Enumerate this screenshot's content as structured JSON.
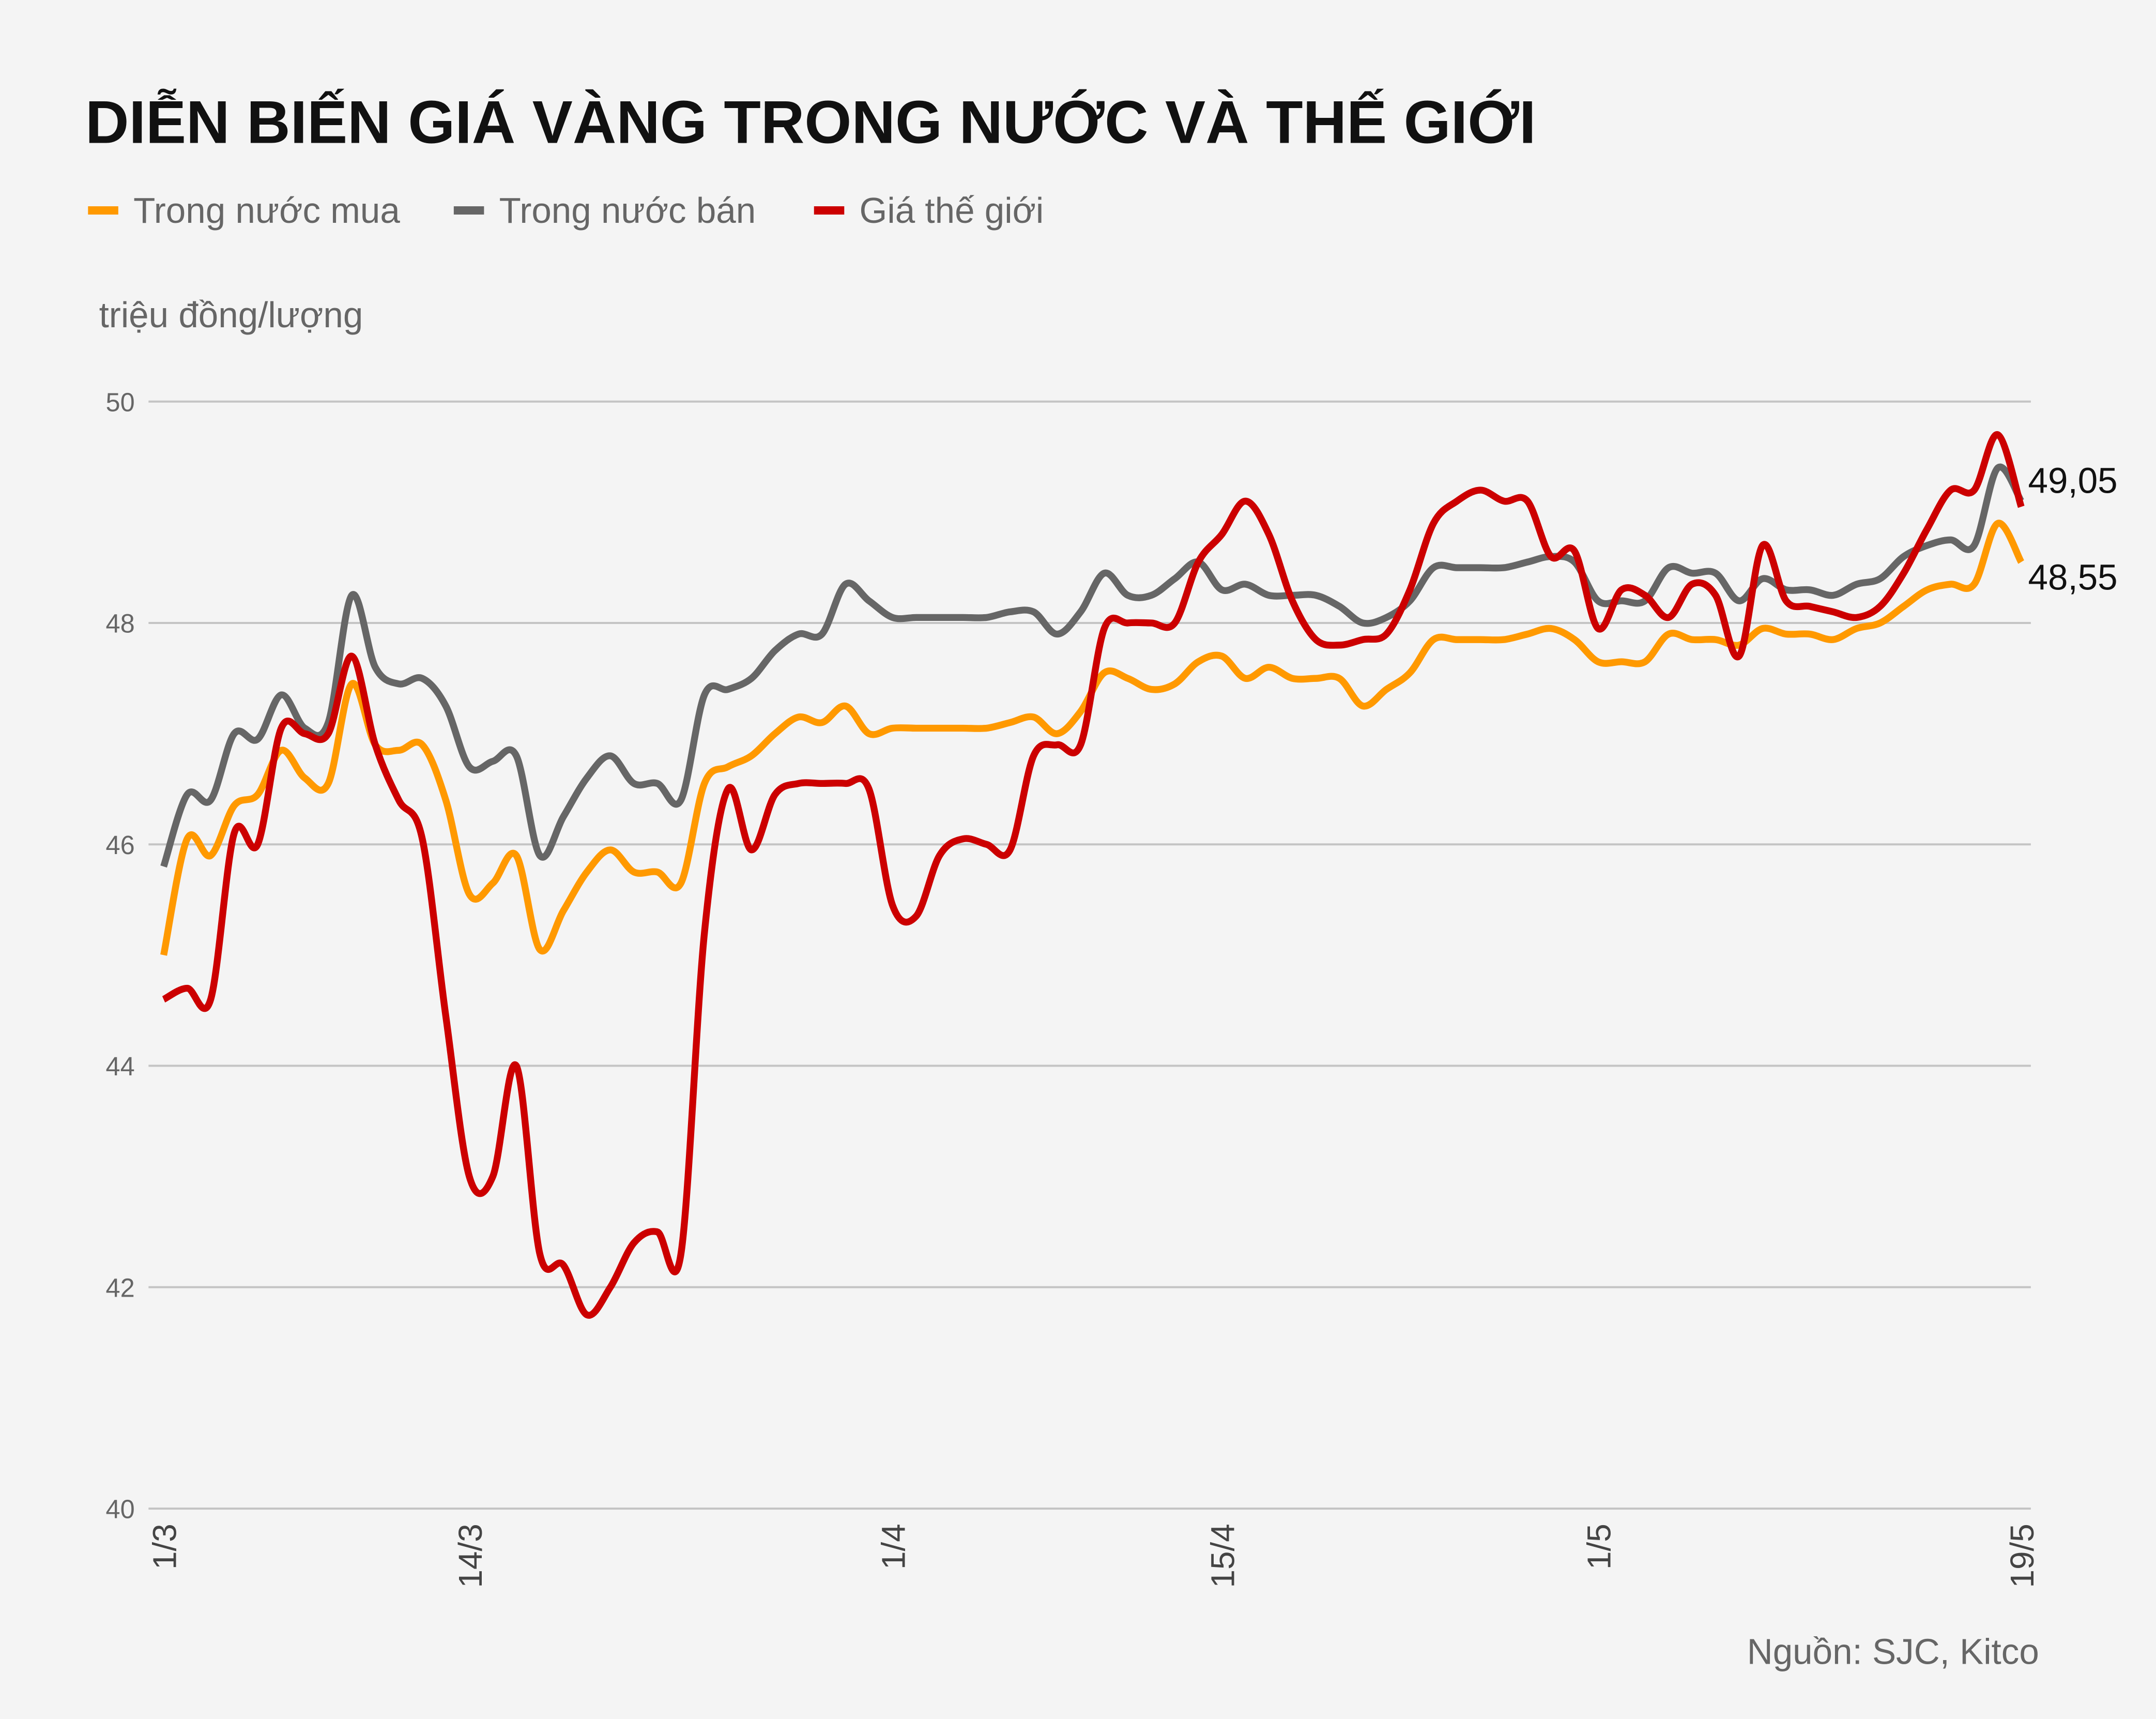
{
  "title": "DIỄN BIẾN GIÁ VÀNG TRONG NƯỚC VÀ THẾ GIỚI",
  "source": "Nguồn: SJC, Kitco",
  "chart_data": {
    "type": "line",
    "title": "DIỄN BIẾN GIÁ VÀNG TRONG NƯỚC VÀ THẾ GIỚI",
    "ylabel": "triệu đồng/lượng",
    "xlabel": "",
    "ylim": [
      40,
      50
    ],
    "yticks": [
      "50",
      "48",
      "46",
      "44",
      "42",
      "40"
    ],
    "ytick_values": [
      50,
      48,
      46,
      44,
      42,
      40
    ],
    "xticks": [
      "1/3",
      "14/3",
      "1/4",
      "15/4",
      "1/5",
      "19/5"
    ],
    "grid": "horizontal",
    "legend_position": "top-left",
    "x": [
      "1/3",
      "2/3",
      "3/3",
      "4/3",
      "5/3",
      "6/3",
      "7/3",
      "8/3",
      "9/3",
      "10/3",
      "11/3",
      "12/3",
      "13/3",
      "14/3",
      "15/3",
      "16/3",
      "17/3",
      "18/3",
      "19/3",
      "20/3",
      "21/3",
      "22/3",
      "23/3",
      "24/3",
      "25/3",
      "26/3",
      "27/3",
      "28/3",
      "29/3",
      "30/3",
      "31/3",
      "1/4",
      "2/4",
      "3/4",
      "4/4",
      "5/4",
      "6/4",
      "7/4",
      "8/4",
      "9/4",
      "10/4",
      "11/4",
      "12/4",
      "13/4",
      "14/4",
      "15/4",
      "16/4",
      "17/4",
      "18/4",
      "19/4",
      "20/4",
      "21/4",
      "22/4",
      "23/4",
      "24/4",
      "25/4",
      "26/4",
      "27/4",
      "28/4",
      "29/4",
      "30/4",
      "1/5",
      "2/5",
      "3/5",
      "4/5",
      "5/5",
      "6/5",
      "7/5",
      "8/5",
      "9/5",
      "10/5",
      "11/5",
      "12/5",
      "13/5",
      "14/5",
      "15/5",
      "16/5",
      "17/5",
      "18/5",
      "19/5"
    ],
    "series": [
      {
        "name": "Trong nước mua",
        "color": "#ff9900",
        "end_label": "48,55",
        "values": [
          45.0,
          46.05,
          45.9,
          46.35,
          46.45,
          46.85,
          46.6,
          46.55,
          47.45,
          46.9,
          46.85,
          46.9,
          46.4,
          45.55,
          45.65,
          45.9,
          45.05,
          45.4,
          45.75,
          45.95,
          45.75,
          45.75,
          45.65,
          46.55,
          46.7,
          46.8,
          47.0,
          47.15,
          47.1,
          47.25,
          47.0,
          47.05,
          47.05,
          47.05,
          47.05,
          47.05,
          47.1,
          47.15,
          47.0,
          47.2,
          47.55,
          47.5,
          47.4,
          47.45,
          47.65,
          47.7,
          47.5,
          47.6,
          47.5,
          47.5,
          47.5,
          47.25,
          47.4,
          47.55,
          47.85,
          47.85,
          47.85,
          47.85,
          47.9,
          47.95,
          47.85,
          47.65,
          47.65,
          47.65,
          47.9,
          47.85,
          47.85,
          47.8,
          47.95,
          47.9,
          47.9,
          47.85,
          47.95,
          48.0,
          48.15,
          48.3,
          48.35,
          48.35,
          48.9,
          48.55
        ]
      },
      {
        "name": "Trong nước bán",
        "color": "#666666",
        "end_label": "",
        "values": [
          45.8,
          46.45,
          46.4,
          47.0,
          46.95,
          47.35,
          47.05,
          47.1,
          48.25,
          47.6,
          47.45,
          47.5,
          47.25,
          46.7,
          46.75,
          46.8,
          45.9,
          46.25,
          46.6,
          46.8,
          46.55,
          46.55,
          46.4,
          47.35,
          47.4,
          47.5,
          47.75,
          47.9,
          47.9,
          48.35,
          48.2,
          48.05,
          48.05,
          48.05,
          48.05,
          48.05,
          48.1,
          48.1,
          47.9,
          48.1,
          48.45,
          48.25,
          48.25,
          48.4,
          48.55,
          48.3,
          48.35,
          48.25,
          48.25,
          48.25,
          48.15,
          48.0,
          48.05,
          48.2,
          48.5,
          48.5,
          48.5,
          48.5,
          48.55,
          48.6,
          48.55,
          48.2,
          48.2,
          48.2,
          48.5,
          48.45,
          48.45,
          48.2,
          48.4,
          48.3,
          48.3,
          48.25,
          48.35,
          48.4,
          48.6,
          48.7,
          48.75,
          48.7,
          49.4,
          49.1
        ]
      },
      {
        "name": "Giá thế giới",
        "color": "#cc0000",
        "end_label": "49,05",
        "values": [
          44.6,
          44.7,
          44.6,
          46.1,
          46.0,
          47.05,
          47.0,
          47.0,
          47.7,
          46.9,
          46.4,
          46.05,
          44.45,
          43.0,
          43.0,
          44.0,
          42.3,
          42.2,
          41.75,
          42.0,
          42.4,
          42.5,
          42.3,
          45.2,
          46.5,
          45.95,
          46.45,
          46.55,
          46.55,
          46.55,
          46.5,
          45.45,
          45.35,
          45.9,
          46.05,
          46.0,
          45.95,
          46.8,
          46.9,
          46.9,
          47.95,
          48.0,
          48.0,
          48.0,
          48.55,
          48.8,
          49.1,
          48.8,
          48.2,
          47.85,
          47.8,
          47.85,
          47.9,
          48.3,
          48.9,
          49.1,
          49.2,
          49.1,
          49.1,
          48.6,
          48.65,
          47.95,
          48.3,
          48.25,
          48.05,
          48.35,
          48.25,
          47.7,
          48.7,
          48.2,
          48.15,
          48.1,
          48.05,
          48.15,
          48.45,
          48.85,
          49.2,
          49.2,
          49.7,
          49.05
        ]
      }
    ]
  }
}
